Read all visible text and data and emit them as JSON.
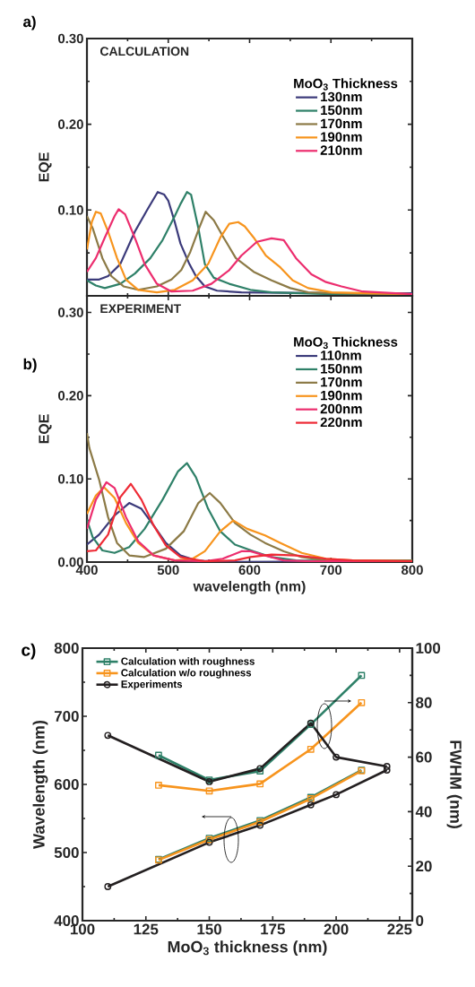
{
  "chart_data": [
    {
      "type": "line",
      "title": "a)",
      "ylabel": "EQE",
      "annotations": [
        "CALCULATION"
      ],
      "legend_title": "MoO$_{3}$ Thickness",
      "legend": "top right",
      "tick_labels": "y",
      "xlim": [
        400,
        800
      ],
      "xticks": [
        400,
        500,
        600,
        700,
        800
      ],
      "ylim": [
        0,
        0.3
      ],
      "yticks": [
        {
          "value": 0,
          "label": null
        },
        {
          "value": 0.1,
          "label": "0.10"
        },
        {
          "value": 0.2,
          "label": "0.20"
        },
        {
          "value": 0.3,
          "label": "0.30"
        }
      ],
      "series": [
        {
          "name": "130nm",
          "color": "#3b3a7a",
          "x": [
            400,
            415,
            426,
            441,
            459,
            474,
            487,
            495,
            500,
            508,
            515,
            526,
            534,
            545,
            560,
            590,
            700,
            800
          ],
          "values": [
            0.019,
            0.019,
            0.023,
            0.037,
            0.075,
            0.1,
            0.121,
            0.118,
            0.111,
            0.086,
            0.061,
            0.037,
            0.023,
            0.011,
            0.006,
            0.004,
            0.003,
            0.003
          ]
        },
        {
          "name": "150nm",
          "color": "#2e8068",
          "x": [
            400,
            411,
            422,
            441,
            459,
            478,
            493,
            508,
            515,
            523,
            528,
            537,
            545,
            556,
            575,
            601,
            627,
            701,
            800
          ],
          "values": [
            0.018,
            0.012,
            0.009,
            0.014,
            0.026,
            0.044,
            0.065,
            0.093,
            0.107,
            0.121,
            0.118,
            0.079,
            0.037,
            0.021,
            0.014,
            0.007,
            0.004,
            0.002,
            0.002
          ]
        },
        {
          "name": "170nm",
          "color": "#8c7a46",
          "x": [
            400,
            407,
            419,
            430,
            445,
            463,
            486,
            504,
            516,
            527,
            538,
            546,
            556,
            568,
            583,
            605,
            627,
            650,
            672,
            800
          ],
          "values": [
            0.093,
            0.079,
            0.044,
            0.023,
            0.011,
            0.007,
            0.011,
            0.019,
            0.03,
            0.051,
            0.079,
            0.098,
            0.088,
            0.068,
            0.044,
            0.028,
            0.018,
            0.009,
            0.004,
            0.001
          ]
        },
        {
          "name": "190nm",
          "color": "#f7941d",
          "x": [
            400,
            406,
            411,
            417,
            426,
            437,
            448,
            463,
            486,
            508,
            530,
            549,
            564,
            575,
            586,
            594,
            605,
            620,
            638,
            653,
            672,
            701,
            800
          ],
          "values": [
            0.054,
            0.086,
            0.098,
            0.096,
            0.075,
            0.044,
            0.019,
            0.007,
            0.004,
            0.007,
            0.018,
            0.037,
            0.068,
            0.084,
            0.086,
            0.081,
            0.068,
            0.047,
            0.033,
            0.018,
            0.009,
            0.004,
            0.002
          ]
        },
        {
          "name": "210nm",
          "color": "#ec2d6e",
          "x": [
            400,
            411,
            422,
            434,
            439,
            447,
            460,
            471,
            486,
            504,
            530,
            553,
            575,
            590,
            609,
            627,
            642,
            657,
            676,
            694,
            713,
            739,
            800
          ],
          "values": [
            0.028,
            0.044,
            0.068,
            0.093,
            0.101,
            0.095,
            0.065,
            0.037,
            0.014,
            0.005,
            0.006,
            0.014,
            0.03,
            0.047,
            0.063,
            0.067,
            0.065,
            0.044,
            0.025,
            0.016,
            0.011,
            0.005,
            0.002
          ]
        }
      ]
    },
    {
      "type": "line",
      "title": "b)",
      "ylabel": "EQE",
      "xlabel": "wavelength (nm)",
      "annotations": [
        "EXPERIMENT"
      ],
      "legend_title": "MoO$_{3}$ Thickness",
      "legend": "top right",
      "xlim": [
        400,
        800
      ],
      "xticks": [
        400,
        500,
        600,
        700,
        800
      ],
      "ylim": [
        0,
        0.32
      ],
      "yticks": [
        {
          "value": 0,
          "label": "0.00"
        },
        {
          "value": 0.1,
          "label": "0.10"
        },
        {
          "value": 0.2,
          "label": "0.20"
        },
        {
          "value": 0.3,
          "label": "0.30"
        }
      ],
      "series": [
        {
          "name": "110nm",
          "color": "#3b3a7a",
          "x": [
            400,
            415,
            434,
            452,
            467,
            482,
            497,
            515,
            534,
            564,
            800
          ],
          "values": [
            0.021,
            0.033,
            0.056,
            0.071,
            0.064,
            0.044,
            0.023,
            0.008,
            0.002,
            0.0,
            0.001
          ]
        },
        {
          "name": "150nm",
          "color": "#2e8068",
          "x": [
            400,
            407,
            419,
            434,
            452,
            471,
            493,
            512,
            523,
            534,
            549,
            564,
            582,
            605,
            627,
            657,
            800
          ],
          "values": [
            0.051,
            0.03,
            0.014,
            0.011,
            0.018,
            0.04,
            0.075,
            0.109,
            0.119,
            0.102,
            0.064,
            0.037,
            0.021,
            0.013,
            0.006,
            0.002,
            0.001
          ]
        },
        {
          "name": "170nm",
          "color": "#8c7a46",
          "x": [
            400,
            403,
            415,
            426,
            437,
            452,
            470,
            497,
            519,
            537,
            551,
            564,
            582,
            601,
            619,
            642,
            664,
            694,
            800
          ],
          "values": [
            0.155,
            0.137,
            0.099,
            0.054,
            0.023,
            0.008,
            0.006,
            0.016,
            0.037,
            0.071,
            0.083,
            0.071,
            0.047,
            0.033,
            0.023,
            0.013,
            0.006,
            0.002,
            0.002
          ]
        },
        {
          "name": "190nm",
          "color": "#f7941d",
          "x": [
            400,
            411,
            421,
            434,
            448,
            463,
            482,
            508,
            530,
            545,
            564,
            580,
            597,
            619,
            638,
            664,
            694,
            727,
            800
          ],
          "values": [
            0.058,
            0.08,
            0.09,
            0.077,
            0.047,
            0.023,
            0.008,
            0.002,
            0.004,
            0.013,
            0.037,
            0.05,
            0.04,
            0.032,
            0.023,
            0.011,
            0.004,
            0.002,
            0.001
          ]
        },
        {
          "name": "200nm",
          "color": "#ec2d6e",
          "x": [
            400,
            411,
            424,
            434,
            448,
            463,
            482,
            508,
            545,
            567,
            590,
            601,
            619,
            642,
            675,
            800
          ],
          "values": [
            0.04,
            0.075,
            0.096,
            0.089,
            0.054,
            0.025,
            0.008,
            0.002,
            0.001,
            0.004,
            0.013,
            0.013,
            0.008,
            0.002,
            0.001,
            0.001
          ]
        },
        {
          "name": "220nm",
          "color": "#ee2a35",
          "x": [
            400,
            411,
            426,
            441,
            454,
            467,
            482,
            497,
            515,
            545,
            582,
            601,
            627,
            657,
            694,
            727,
            800
          ],
          "values": [
            0.013,
            0.014,
            0.033,
            0.078,
            0.094,
            0.075,
            0.044,
            0.02,
            0.006,
            0.001,
            0.002,
            0.006,
            0.009,
            0.008,
            0.004,
            0.002,
            0.001
          ]
        }
      ]
    },
    {
      "type": "line",
      "title": "c)",
      "xlabel": "MoO$_{3}$ thickness (nm)",
      "ylabel": "Wavelength (nm)",
      "y2label": "FWHM (nm)",
      "legend": "top left",
      "xlim": [
        100,
        230
      ],
      "xticks": [
        100,
        125,
        150,
        175,
        200,
        225
      ],
      "ylim": [
        400,
        800
      ],
      "yticks": [
        400,
        500,
        600,
        700,
        800
      ],
      "y2lim": [
        0,
        100
      ],
      "y2ticks": [
        0,
        20,
        40,
        60,
        80,
        100
      ],
      "series": [
        {
          "name": "Calculation with roughness",
          "color": "#2e8068",
          "marker": "square",
          "x": [
            130,
            150,
            170,
            190,
            210
          ],
          "values": [
            490,
            521,
            547,
            581,
            621
          ]
        },
        {
          "name": "Calculation w/o roughness",
          "color": "#f7941d",
          "marker": "square",
          "x": [
            130,
            150,
            170,
            190,
            210
          ],
          "values": [
            489,
            519,
            545,
            579,
            620
          ]
        },
        {
          "name": "Experiments",
          "color": "#231f20",
          "marker": "circle",
          "x": [
            110,
            150,
            170,
            190,
            200,
            220
          ],
          "values": [
            450,
            515,
            540,
            570,
            585,
            621
          ]
        },
        {
          "color": "#2e8068",
          "marker": "square",
          "axis": "y2",
          "x": [
            130,
            150,
            170,
            190,
            210
          ],
          "values": [
            60.7,
            51.6,
            54.9,
            72,
            90
          ]
        },
        {
          "color": "#f7941d",
          "marker": "square",
          "axis": "y2",
          "x": [
            130,
            150,
            170,
            190,
            210
          ],
          "values": [
            49.7,
            47.6,
            50.2,
            62.9,
            80
          ]
        },
        {
          "color": "#231f20",
          "marker": "circle",
          "axis": "y2",
          "x": [
            110,
            150,
            170,
            190,
            200,
            220
          ],
          "values": [
            68,
            51,
            55.8,
            72.5,
            60,
            56.6
          ]
        }
      ]
    }
  ]
}
